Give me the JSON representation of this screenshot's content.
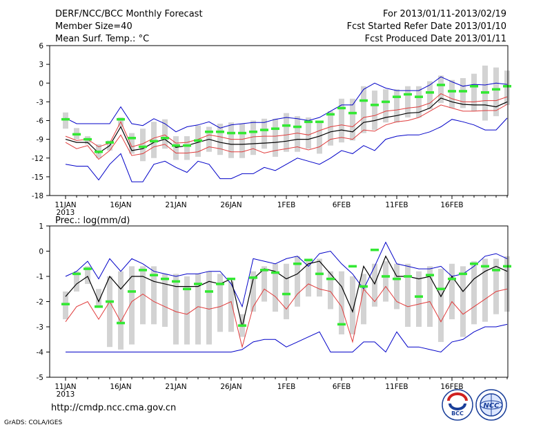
{
  "header": {
    "title": "DERF/NCC/BCC Monthly Forecast",
    "member_size": "Member Size=40",
    "variable": "Mean Surf. Temp.: °C",
    "period": "For 2013/01/11-2013/02/19",
    "started": "Fcst Started Refer Date 2013/01/10",
    "produced": "Fcst Produced Date 2013/01/11"
  },
  "footer": {
    "url": "http://cmdp.ncc.cma.gov.cn",
    "grads": "GrADS: COLA/IGES",
    "logo_bcc": "BCC",
    "logo_ncc": "NCC"
  },
  "colors": {
    "box": "#d3d3d3",
    "obs": "#33e833",
    "mean": "#000000",
    "spread": "#e03a3a",
    "extreme": "#0000c8",
    "axis": "#000000"
  },
  "chart_data": [
    {
      "id": "temp",
      "type": "line",
      "title": "",
      "ylabel": "Mean Surf. Temp.: °C",
      "ylim": [
        -18,
        6
      ],
      "yticks": [
        -18,
        -15,
        -12,
        -9,
        -6,
        -3,
        0,
        3,
        6
      ],
      "xlim": [
        0,
        40
      ],
      "xtick_pos": [
        0,
        5,
        10,
        15,
        20,
        25,
        30,
        35
      ],
      "xtick_labels": [
        "11JAN",
        "16JAN",
        "21JAN",
        "26JAN",
        "1FEB",
        "6FEB",
        "11FEB",
        "16FEB"
      ],
      "year_label": "2013",
      "series": [
        {
          "name": "max",
          "values": [
            -13,
            -13.3,
            -13.3,
            -15.5,
            -13,
            -11.3,
            -15.8,
            -15.8,
            -13,
            -12.5,
            -13.5,
            -14.3,
            -12.5,
            -13,
            -15.3,
            -15.3,
            -14.5,
            -14.5,
            -13.5,
            -14,
            -13,
            -12,
            -12.5,
            -13,
            -12,
            -10.8,
            -11.3,
            -10,
            -10.8,
            -9,
            -8.5,
            -8.3,
            -8.3,
            -7.8,
            -7,
            -5.8,
            -6.2,
            -6.7,
            -7.5,
            -7.5,
            -5.6
          ]
        },
        {
          "name": "upper",
          "values": [
            -9.5,
            -10.5,
            -10,
            -12.2,
            -10.8,
            -8.3,
            -11.6,
            -11.3,
            -10.2,
            -9.8,
            -11.2,
            -11.2,
            -11,
            -10.2,
            -10.5,
            -11,
            -11,
            -10.5,
            -11.2,
            -10.8,
            -10.5,
            -10.2,
            -10.7,
            -10.2,
            -9,
            -8.7,
            -9,
            -7.5,
            -7.7,
            -6.7,
            -6.2,
            -6,
            -5.5,
            -4.5,
            -3.5,
            -4,
            -4.5,
            -4.5,
            -4.4,
            -4.4,
            -3.4
          ]
        },
        {
          "name": "mean",
          "values": [
            -9,
            -9.5,
            -9.5,
            -11.2,
            -10,
            -7,
            -10.8,
            -10.5,
            -9.5,
            -9,
            -10.3,
            -10,
            -9.5,
            -9,
            -9.5,
            -9.8,
            -9.8,
            -9.7,
            -9.6,
            -9.5,
            -9.3,
            -9,
            -9,
            -8.5,
            -7.8,
            -7.5,
            -7.8,
            -6.3,
            -6,
            -5.5,
            -5.2,
            -4.8,
            -4.7,
            -4,
            -2.4,
            -3,
            -3.4,
            -3.5,
            -3.5,
            -3.8,
            -3
          ]
        },
        {
          "name": "lower",
          "values": [
            -8.5,
            -9.2,
            -9,
            -10.2,
            -9.6,
            -6.2,
            -10.2,
            -9.7,
            -8.8,
            -8.3,
            -9.6,
            -9.5,
            -9,
            -8.3,
            -8.6,
            -9,
            -9,
            -8.6,
            -8.5,
            -8.5,
            -8.3,
            -8,
            -8.3,
            -7.6,
            -7,
            -6.7,
            -7,
            -5.5,
            -5.2,
            -4.5,
            -4.3,
            -4,
            -3.8,
            -3.2,
            -1.7,
            -2.5,
            -3,
            -3,
            -2.8,
            -2.8,
            -2.2
          ]
        },
        {
          "name": "min",
          "values": [
            -5.6,
            -6.5,
            -6.5,
            -6.5,
            -6.5,
            -3.8,
            -6.5,
            -6.8,
            -5.7,
            -6.5,
            -7.8,
            -7,
            -6.7,
            -6.2,
            -7.2,
            -6.7,
            -6.5,
            -6.3,
            -6.3,
            -5.8,
            -5.5,
            -5.7,
            -6,
            -5.5,
            -4.5,
            -3.5,
            -3.5,
            -1,
            0,
            -0.8,
            -1.2,
            -1.2,
            -1.2,
            -0.3,
            1,
            0.2,
            -0.5,
            -0.2,
            -0.3,
            0,
            -0.2
          ]
        },
        {
          "name": "obs",
          "values": [
            -5.8,
            -8.2,
            -9,
            -11,
            -9.5,
            -5.8,
            -8.8,
            -10.2,
            -9.3,
            -8.8,
            -10,
            -10,
            -9.2,
            -7.8,
            -7.8,
            -8,
            -8,
            -7.8,
            -7.5,
            -7.3,
            -6.8,
            -7,
            -6.2,
            -6.2,
            -5,
            -4,
            -4.8,
            -2.8,
            -3.5,
            -3,
            -2.2,
            -1.8,
            -2.2,
            -1.5,
            -0.3,
            -1.3,
            -1.3,
            -0.5,
            -1.5,
            -1,
            -0.5
          ]
        },
        {
          "name": "box_lo",
          "values": [
            -7.3,
            -9,
            -9.8,
            -12,
            -10.8,
            -7,
            -11.3,
            -12.5,
            -12,
            -10.5,
            -12.3,
            -12.3,
            -11.8,
            -11,
            -11.5,
            -12,
            -12,
            -11.5,
            -10.5,
            -11.8,
            -11,
            -11,
            -10.5,
            -11.3,
            -10,
            -9.5,
            -9.2,
            -8,
            -7.5,
            -6.3,
            -6.3,
            -5.5,
            -5.5,
            -4.2,
            -3.2,
            -4,
            -4,
            -4.5,
            -6,
            -5.3,
            -3.5
          ]
        },
        {
          "name": "box_hi",
          "values": [
            -4.7,
            -7.2,
            -8.5,
            -9.8,
            -9.2,
            -5.5,
            -8,
            -7.3,
            -6.2,
            -5.8,
            -8.5,
            -8.5,
            -6.8,
            -7,
            -6.5,
            -6.3,
            -6.5,
            -6,
            -5.7,
            -5.7,
            -4.8,
            -5.3,
            -5.5,
            -6,
            -4.5,
            -2.5,
            -2.5,
            -0.5,
            -1.2,
            -1,
            -1,
            -0.5,
            -0.5,
            0.3,
            1.2,
            0.5,
            0.8,
            1.5,
            2.8,
            2.5,
            2
          ]
        }
      ]
    },
    {
      "id": "prec",
      "type": "line",
      "title": "Prec.: log(mm/d)",
      "ylabel": "Prec.: log(mm/d)",
      "ylim": [
        -5,
        1
      ],
      "yticks": [
        -5,
        -4,
        -3,
        -2,
        -1,
        0,
        1
      ],
      "xlim": [
        0,
        40
      ],
      "xtick_pos": [
        0,
        5,
        10,
        15,
        20,
        25,
        30,
        35
      ],
      "xtick_labels": [
        "11JAN",
        "16JAN",
        "21JAN",
        "26JAN",
        "1FEB",
        "6FEB",
        "11FEB",
        "16FEB"
      ],
      "year_label": "2013",
      "series": [
        {
          "name": "max",
          "values": [
            -1,
            -0.8,
            -0.4,
            -1.1,
            -0.3,
            -0.8,
            -0.3,
            -0.5,
            -0.8,
            -0.9,
            -1,
            -0.9,
            -0.9,
            -0.8,
            -0.8,
            -1.3,
            -2.2,
            -0.3,
            -0.4,
            -0.5,
            -0.3,
            -0.2,
            -0.6,
            -0.1,
            0,
            -0.5,
            -0.9,
            -1.5,
            -0.6,
            0.35,
            -0.5,
            -0.6,
            -0.7,
            -0.7,
            -0.6,
            -1,
            -0.9,
            -0.6,
            -0.2,
            -0.1,
            -0.3
          ]
        },
        {
          "name": "mean",
          "values": [
            -1.8,
            -1.3,
            -1,
            -2,
            -1,
            -1.5,
            -1,
            -1,
            -1.2,
            -1.3,
            -1.4,
            -1.4,
            -1.4,
            -1.2,
            -1.3,
            -1.1,
            -3,
            -1.1,
            -0.7,
            -0.8,
            -1.1,
            -0.9,
            -0.5,
            -0.4,
            -0.9,
            -1.4,
            -2.4,
            -0.6,
            -1.3,
            -0.2,
            -1,
            -1,
            -1.1,
            -1,
            -1.8,
            -1,
            -1.6,
            -1.1,
            -0.8,
            -0.6,
            -0.8
          ]
        },
        {
          "name": "lower",
          "values": [
            -2.8,
            -2.2,
            -2,
            -2.7,
            -2,
            -2.8,
            -2,
            -1.7,
            -2,
            -2.2,
            -2.4,
            -2.5,
            -2.2,
            -2.3,
            -2.2,
            -2,
            -3.8,
            -2.2,
            -1.5,
            -1.8,
            -2.3,
            -1.7,
            -1.3,
            -1.5,
            -1.6,
            -2.2,
            -3.6,
            -1.5,
            -2,
            -1.4,
            -2,
            -2.2,
            -2.1,
            -2,
            -2.8,
            -2,
            -2.5,
            -2.2,
            -1.9,
            -1.6,
            -1.5
          ]
        },
        {
          "name": "min",
          "values": [
            -4,
            -4,
            -4,
            -4,
            -4,
            -4,
            -4,
            -4,
            -4,
            -4,
            -4,
            -4,
            -4,
            -4,
            -4,
            -4,
            -3.9,
            -3.6,
            -3.5,
            -3.5,
            -3.8,
            -3.6,
            -3.4,
            -3.2,
            -4,
            -4,
            -4,
            -3.6,
            -3.6,
            -4,
            -3.2,
            -3.8,
            -3.8,
            -3.9,
            -4,
            -3.6,
            -3.5,
            -3.2,
            -3,
            -3,
            -2.9
          ]
        },
        {
          "name": "obs",
          "values": [
            -2.1,
            -0.9,
            -0.7,
            -2.2,
            -2,
            -2.85,
            -1.6,
            -0.75,
            -0.95,
            -1.1,
            -1.2,
            -1.5,
            -1.3,
            -1.6,
            -1.3,
            -1.1,
            -2.95,
            -1.05,
            -0.75,
            -0.85,
            -1.7,
            -0.5,
            -0.35,
            -0.9,
            -1.1,
            -2.9,
            -0.6,
            -1.4,
            0.05,
            -1,
            -1.1,
            -1,
            -1.8,
            -0.95,
            -1.5,
            -1.1,
            -0.9,
            -0.5,
            -0.6,
            -0.75,
            -0.6
          ]
        },
        {
          "name": "box_lo",
          "values": [
            -2.7,
            -1.6,
            -1.3,
            -2.2,
            -3.8,
            -3.9,
            -3.7,
            -2.9,
            -2.9,
            -3,
            -3.7,
            -3.7,
            -3.7,
            -3.7,
            -3.2,
            -3.2,
            -3.4,
            -2.4,
            -2,
            -2.4,
            -2.7,
            -2.2,
            -1.8,
            -1.8,
            -2.3,
            -3.3,
            -3.3,
            -2.9,
            -2.2,
            -2,
            -2.3,
            -3,
            -3,
            -3,
            -3.6,
            -2.7,
            -3.4,
            -2.9,
            -2.8,
            -2.5,
            -2.4
          ]
        },
        {
          "name": "box_hi",
          "values": [
            -1.6,
            -0.8,
            -0.6,
            -1.5,
            -1,
            -0.8,
            -0.6,
            -0.6,
            -0.6,
            -0.9,
            -0.9,
            -1,
            -0.9,
            -0.8,
            -0.9,
            -1.2,
            -2.5,
            -0.8,
            -0.6,
            -0.5,
            -0.5,
            -0.2,
            -0.4,
            -0.3,
            -0.8,
            -0.8,
            -1,
            -0.9,
            -0.5,
            -0.4,
            -0.5,
            -0.5,
            -0.8,
            -0.6,
            -0.7,
            -0.5,
            -0.6,
            -0.4,
            -0.3,
            -0.3,
            -0.2
          ]
        }
      ]
    }
  ]
}
